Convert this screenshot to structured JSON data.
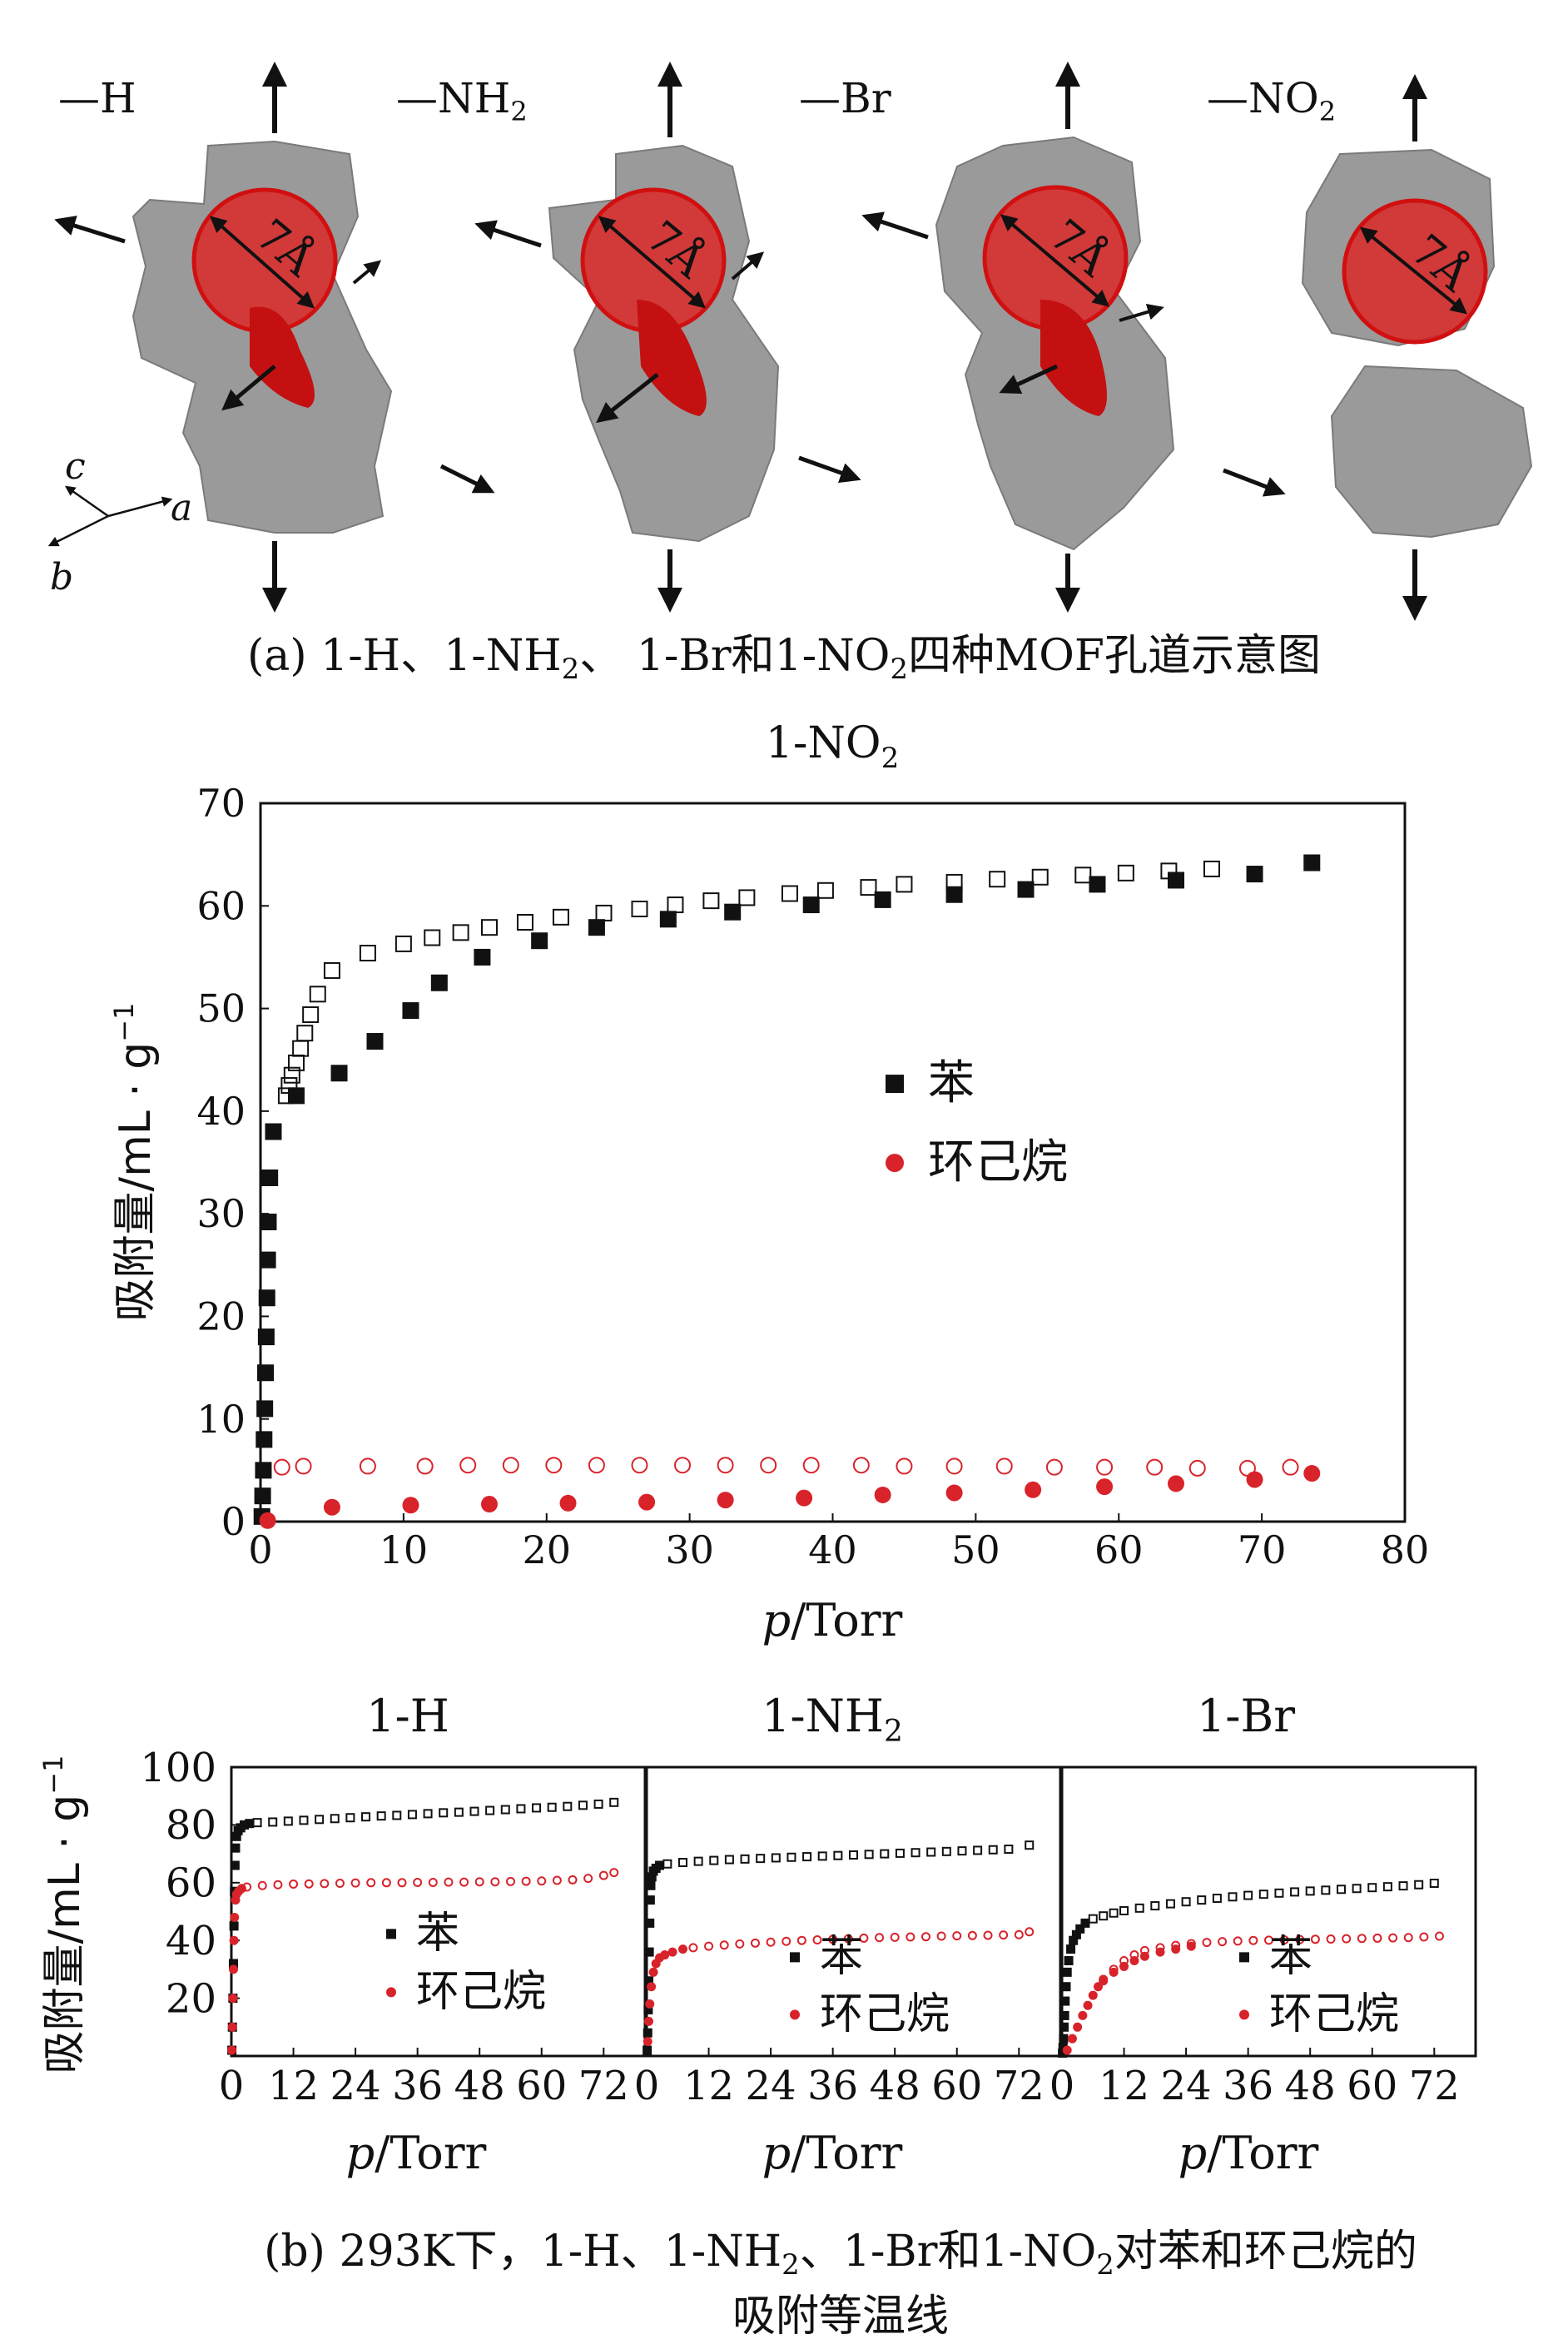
{
  "panel_a": {
    "labels": {
      "h": {
        "prefix": "—",
        "main": "H",
        "sub": ""
      },
      "nh2": {
        "prefix": "—",
        "main": "NH",
        "sub": "2"
      },
      "br": {
        "prefix": "—",
        "main": "Br",
        "sub": ""
      },
      "no2": {
        "prefix": "—",
        "main": "NO",
        "sub": "2"
      }
    },
    "pore_label": "7Å",
    "axes": {
      "a": "a",
      "b": "b",
      "c": "c"
    },
    "caption": {
      "part1": "(a) 1-H、1-NH",
      "sub1": "2",
      "part2": "、 1-Br和1-NO",
      "sub2": "2",
      "part3": "四种MOF孔道示意图"
    }
  },
  "colors": {
    "benzene": "#111111",
    "cyclohexane": "#d8232a",
    "pore": "#e02020",
    "framework": "#9a9a9a"
  },
  "legend": {
    "benzene": "苯",
    "cyclohexane": "环己烷"
  },
  "captions": {
    "b_line1_part1": "(b) 293K下，1-H、1-NH",
    "b_line1_sub1": "2",
    "b_line1_part2": "、1-Br和1-NO",
    "b_line1_sub2": "2",
    "b_line1_part3": "对苯和环己烷的",
    "b_line2": "吸附等温线"
  },
  "chart_data": [
    {
      "id": "no2",
      "type": "scatter",
      "title": "1-NO",
      "title_sub": "2",
      "xlabel_italic": "p",
      "xlabel_rest": "/Torr",
      "ylabel": "吸附量/mL · g",
      "ylabel_sup": "−1",
      "xlim": [
        0,
        80
      ],
      "ylim": [
        0,
        70
      ],
      "xticks": [
        0,
        10,
        20,
        30,
        40,
        50,
        60,
        70,
        80
      ],
      "yticks": [
        0,
        10,
        20,
        30,
        40,
        50,
        60,
        70
      ],
      "legend_position": "center-right",
      "series": [
        {
          "name": "苯 adsorption",
          "marker": "square-filled",
          "color": "#111111",
          "x": [
            0.1,
            0.15,
            0.2,
            0.25,
            0.3,
            0.35,
            0.4,
            0.45,
            0.5,
            0.55,
            0.65,
            0.9,
            2.5,
            5.5,
            8,
            10.5,
            12.5,
            15.5,
            19.5,
            23.5,
            28.5,
            33,
            38.5,
            43.5,
            48.5,
            53.5,
            58.5,
            64,
            69.5,
            73.5
          ],
          "y": [
            0.5,
            2.5,
            5,
            8,
            11,
            14.5,
            18,
            21.8,
            25.5,
            29.2,
            33.5,
            38,
            41.5,
            43.7,
            46.8,
            49.8,
            52.5,
            55,
            56.6,
            57.9,
            58.7,
            59.4,
            60.1,
            60.6,
            61.1,
            61.6,
            62.1,
            62.5,
            63.1,
            64.2
          ]
        },
        {
          "name": "苯 desorption",
          "marker": "square-open",
          "color": "#111111",
          "x": [
            1.8,
            2.0,
            2.2,
            2.5,
            2.8,
            3.1,
            3.5,
            4.0,
            5.0,
            7.5,
            10,
            12,
            14,
            16,
            18.5,
            21,
            24,
            26.5,
            29,
            31.5,
            34,
            37,
            39.5,
            42.5,
            45,
            48.5,
            51.5,
            54.5,
            57.5,
            60.5,
            63.5,
            66.5
          ],
          "y": [
            41.5,
            42.5,
            43.5,
            44.7,
            46.1,
            47.6,
            49.4,
            51.4,
            53.7,
            55.4,
            56.3,
            56.9,
            57.4,
            57.9,
            58.4,
            58.9,
            59.3,
            59.7,
            60.1,
            60.5,
            60.8,
            61.2,
            61.5,
            61.8,
            62.1,
            62.3,
            62.6,
            62.8,
            63.0,
            63.2,
            63.4,
            63.6
          ]
        },
        {
          "name": "环己烷 adsorption",
          "marker": "circle-filled",
          "color": "#d8232a",
          "x": [
            0.5,
            5,
            10.5,
            16,
            21.5,
            27,
            32.5,
            38,
            43.5,
            48.5,
            54,
            59,
            64,
            69.5,
            73.5
          ],
          "y": [
            0.1,
            1.4,
            1.6,
            1.7,
            1.8,
            1.9,
            2.1,
            2.3,
            2.6,
            2.8,
            3.1,
            3.4,
            3.7,
            4.1,
            4.7
          ]
        },
        {
          "name": "环己烷 desorption",
          "marker": "circle-open",
          "color": "#d8232a",
          "x": [
            1.5,
            3,
            7.5,
            11.5,
            14.5,
            17.5,
            20.5,
            23.5,
            26.5,
            29.5,
            32.5,
            35.5,
            38.5,
            42,
            45,
            48.5,
            52,
            55.5,
            59,
            62.5,
            65.5,
            69,
            72
          ],
          "y": [
            5.3,
            5.4,
            5.4,
            5.4,
            5.5,
            5.5,
            5.5,
            5.5,
            5.5,
            5.5,
            5.5,
            5.5,
            5.5,
            5.5,
            5.4,
            5.4,
            5.4,
            5.3,
            5.3,
            5.3,
            5.2,
            5.2,
            5.3
          ]
        }
      ]
    },
    {
      "id": "h",
      "type": "scatter",
      "title": "1-H",
      "title_sub": "",
      "xlabel_italic": "p",
      "xlabel_rest": "/Torr",
      "ylabel": "吸附量/mL · g",
      "ylabel_sup": "−1",
      "xlim": [
        0,
        80
      ],
      "ylim": [
        0,
        100
      ],
      "xticks": [
        0,
        12,
        24,
        36,
        48,
        60,
        72
      ],
      "yticks": [
        20,
        40,
        60,
        80,
        100
      ],
      "legend_position": "lower-left",
      "series": [
        {
          "name": "苯 adsorption",
          "marker": "square-filled",
          "color": "#111111",
          "x": [
            0.1,
            0.2,
            0.3,
            0.4,
            0.5,
            0.6,
            0.7,
            0.8,
            1.0,
            1.3,
            1.8,
            2.5,
            3.5
          ],
          "y": [
            2,
            10,
            20,
            32,
            45,
            57,
            66,
            72,
            76,
            78,
            79,
            80,
            80.5
          ]
        },
        {
          "name": "苯 desorption",
          "marker": "square-open",
          "color": "#111111",
          "x": [
            5,
            8,
            11,
            14,
            17,
            20,
            23,
            26,
            29,
            32,
            35,
            38,
            41,
            44,
            47,
            50,
            53,
            56,
            59,
            62,
            65,
            68,
            71,
            74
          ],
          "y": [
            80.8,
            81.0,
            81.3,
            81.6,
            81.9,
            82.2,
            82.5,
            82.8,
            83.1,
            83.3,
            83.6,
            83.9,
            84.2,
            84.4,
            84.7,
            85.0,
            85.3,
            85.6,
            85.9,
            86.1,
            86.4,
            86.8,
            87.2,
            87.8
          ]
        },
        {
          "name": "环己烷 adsorption",
          "marker": "circle-filled",
          "color": "#d8232a",
          "x": [
            0.1,
            0.2,
            0.3,
            0.4,
            0.5,
            0.6,
            0.8,
            1.0,
            1.4,
            2.0
          ],
          "y": [
            2,
            10,
            20,
            30,
            40,
            48,
            54,
            56,
            57,
            58
          ]
        },
        {
          "name": "环己烷 desorption",
          "marker": "circle-open",
          "color": "#d8232a",
          "x": [
            3,
            6,
            9,
            12,
            15,
            18,
            21,
            24,
            27,
            30,
            33,
            36,
            39,
            42,
            45,
            48,
            51,
            54,
            57,
            60,
            63,
            66,
            69,
            72,
            74
          ],
          "y": [
            58.5,
            59,
            59.3,
            59.5,
            59.6,
            59.7,
            59.8,
            59.9,
            60,
            60,
            60,
            60.1,
            60.1,
            60.2,
            60.2,
            60.3,
            60.3,
            60.4,
            60.5,
            60.6,
            60.8,
            61,
            61.5,
            62.5,
            63.5
          ]
        }
      ]
    },
    {
      "id": "nh2",
      "type": "scatter",
      "title": "1-NH",
      "title_sub": "2",
      "xlabel_italic": "p",
      "xlabel_rest": "/Torr",
      "ylabel": "",
      "ylabel_sup": "",
      "xlim": [
        0,
        80
      ],
      "ylim": [
        0,
        100
      ],
      "xticks": [
        0,
        12,
        24,
        36,
        48,
        60,
        72
      ],
      "yticks": [],
      "legend_position": "lower-center",
      "series": [
        {
          "name": "苯 adsorption",
          "marker": "square-filled",
          "color": "#111111",
          "x": [
            0.1,
            0.2,
            0.3,
            0.4,
            0.5,
            0.6,
            0.7,
            0.8,
            1.0,
            1.3,
            1.8,
            2.5
          ],
          "y": [
            2,
            8,
            16,
            26,
            36,
            46,
            54,
            59,
            62,
            64,
            65,
            66
          ]
        },
        {
          "name": "苯 desorption",
          "marker": "square-open",
          "color": "#111111",
          "x": [
            4,
            7,
            10,
            13,
            16,
            19,
            22,
            25,
            28,
            31,
            34,
            37,
            40,
            43,
            46,
            49,
            52,
            55,
            58,
            61,
            64,
            67,
            70,
            74
          ],
          "y": [
            66.5,
            67,
            67.4,
            67.7,
            68,
            68.2,
            68.4,
            68.6,
            68.8,
            69,
            69.2,
            69.4,
            69.6,
            69.8,
            70,
            70.2,
            70.4,
            70.6,
            70.8,
            71,
            71.2,
            71.4,
            71.6,
            73
          ]
        },
        {
          "name": "环己烷 adsorption",
          "marker": "circle-filled",
          "color": "#d8232a",
          "x": [
            0.2,
            0.4,
            0.6,
            0.9,
            1.3,
            1.8,
            2.5,
            3.5,
            5,
            7
          ],
          "y": [
            5,
            12,
            18,
            24,
            29,
            32,
            34,
            35,
            36,
            37
          ]
        },
        {
          "name": "环己烷 desorption",
          "marker": "circle-open",
          "color": "#d8232a",
          "x": [
            9,
            12,
            15,
            18,
            21,
            24,
            27,
            30,
            33,
            36,
            39,
            42,
            45,
            48,
            51,
            54,
            57,
            60,
            63,
            66,
            69,
            72,
            74
          ],
          "y": [
            37.5,
            38,
            38.4,
            38.8,
            39.1,
            39.4,
            39.7,
            40,
            40.2,
            40.4,
            40.6,
            40.8,
            41,
            41.1,
            41.2,
            41.3,
            41.5,
            41.6,
            41.7,
            41.8,
            41.9,
            42,
            43
          ]
        }
      ]
    },
    {
      "id": "br",
      "type": "scatter",
      "title": "1-Br",
      "title_sub": "",
      "xlabel_italic": "p",
      "xlabel_rest": "/Torr",
      "ylabel": "",
      "ylabel_sup": "",
      "xlim": [
        0,
        80
      ],
      "ylim": [
        0,
        100
      ],
      "xticks": [
        0,
        12,
        24,
        36,
        48,
        60,
        72
      ],
      "yticks": [],
      "legend_position": "lower-right",
      "series": [
        {
          "name": "苯 adsorption",
          "marker": "square-filled",
          "color": "#111111",
          "x": [
            0.1,
            0.2,
            0.3,
            0.4,
            0.5,
            0.6,
            0.8,
            1.0,
            1.3,
            1.7,
            2.2,
            2.8,
            3.5,
            4.5
          ],
          "y": [
            1,
            3,
            6,
            10,
            14,
            19,
            24,
            29,
            33,
            37,
            40,
            42,
            44,
            46
          ]
        },
        {
          "name": "苯 desorption",
          "marker": "square-open",
          "color": "#111111",
          "x": [
            6,
            8,
            10,
            12,
            15,
            18,
            21,
            24,
            27,
            30,
            33,
            36,
            39,
            42,
            45,
            48,
            51,
            54,
            57,
            60,
            63,
            66,
            69,
            72
          ],
          "y": [
            47.5,
            48.5,
            49.5,
            50.3,
            51.2,
            52,
            52.7,
            53.4,
            54,
            54.6,
            55.1,
            55.6,
            56,
            56.4,
            56.8,
            57.1,
            57.4,
            57.7,
            58,
            58.3,
            58.6,
            58.9,
            59.3,
            59.8
          ]
        },
        {
          "name": "环己烷 adsorption",
          "marker": "circle-filled",
          "color": "#d8232a",
          "x": [
            1,
            2,
            3,
            4,
            5,
            6,
            7,
            8,
            10,
            12,
            14,
            16,
            19,
            22,
            25
          ],
          "y": [
            2,
            6,
            10,
            14,
            17.5,
            21,
            24,
            26.5,
            29,
            31,
            33,
            34.5,
            36,
            37,
            38
          ]
        },
        {
          "name": "环己烷 desorption",
          "marker": "circle-open",
          "color": "#d8232a",
          "x": [
            8,
            10,
            12,
            14,
            16,
            19,
            22,
            25,
            28,
            31,
            34,
            37,
            40,
            43,
            46,
            49,
            52,
            55,
            58,
            61,
            64,
            67,
            70,
            73
          ],
          "y": [
            26,
            30,
            33,
            35,
            36.5,
            37.5,
            38.3,
            38.9,
            39.3,
            39.6,
            39.8,
            40,
            40.1,
            40.2,
            40.3,
            40.4,
            40.5,
            40.6,
            40.7,
            40.8,
            40.9,
            41,
            41.2,
            41.5
          ]
        }
      ]
    }
  ]
}
